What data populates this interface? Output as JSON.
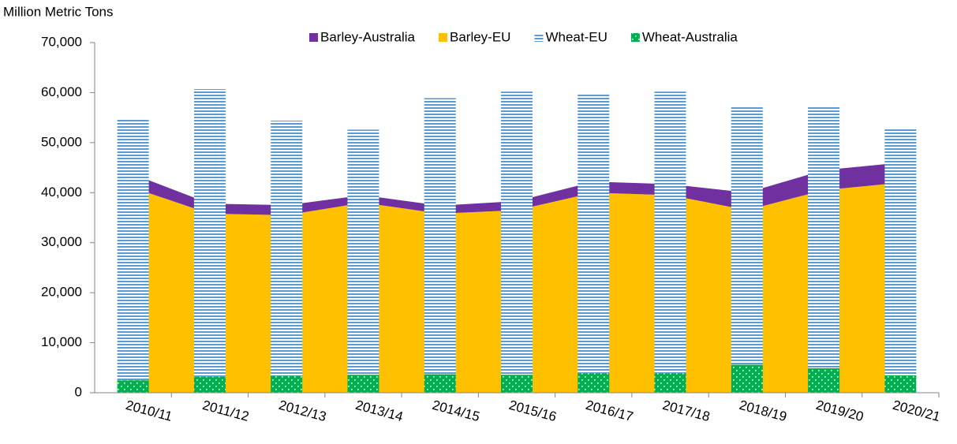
{
  "chart_data": {
    "type": "bar",
    "y_label": "Million Metric Tons",
    "categories": [
      "2010/11",
      "2011/12",
      "2012/13",
      "2013/14",
      "2014/15",
      "2015/16",
      "2016/17",
      "2017/18",
      "2018/19",
      "2019/20",
      "2020/21"
    ],
    "series": [
      {
        "name": "Barley-Australia",
        "type": "area",
        "stack": "barley",
        "color": "#7030a0",
        "values": [
          2700,
          2000,
          2000,
          1500,
          1600,
          1800,
          2200,
          2200,
          3500,
          4000,
          4000
        ]
      },
      {
        "name": "Barley-EU",
        "type": "area",
        "stack": "barley",
        "color": "#ffc000",
        "values": [
          41000,
          35800,
          35500,
          38000,
          35800,
          36500,
          40000,
          39500,
          36500,
          40500,
          42000
        ]
      },
      {
        "name": "Wheat-EU",
        "type": "bar",
        "stack": "wheat",
        "color": "#5b9bd5",
        "pattern": "horizontal-lines",
        "values": [
          52300,
          57500,
          51000,
          49000,
          55200,
          56600,
          56000,
          56300,
          51600,
          52300,
          49200
        ]
      },
      {
        "name": "Wheat-Australia",
        "type": "bar",
        "stack": "wheat",
        "color": "#00b050",
        "pattern": "dots",
        "values": [
          2500,
          3200,
          3400,
          3600,
          3700,
          3600,
          3900,
          3900,
          5600,
          4900,
          3500
        ]
      }
    ],
    "stack_order": [
      "Wheat-Australia",
      "Wheat-EU",
      "Barley-EU",
      "Barley-Australia"
    ],
    "ylim": [
      0,
      70000
    ],
    "yticks": [
      0,
      {
        "value": 10000,
        "label": "10,000"
      },
      {
        "value": 20000,
        "label": "20,000"
      },
      {
        "value": 30000,
        "label": "30,000"
      },
      {
        "value": 40000,
        "label": "40,000"
      },
      {
        "value": 50000,
        "label": "50,000"
      },
      {
        "value": 60000,
        "label": "60,000"
      },
      {
        "value": 70000,
        "label": "70,000"
      }
    ],
    "grid": false,
    "legend": "top"
  }
}
